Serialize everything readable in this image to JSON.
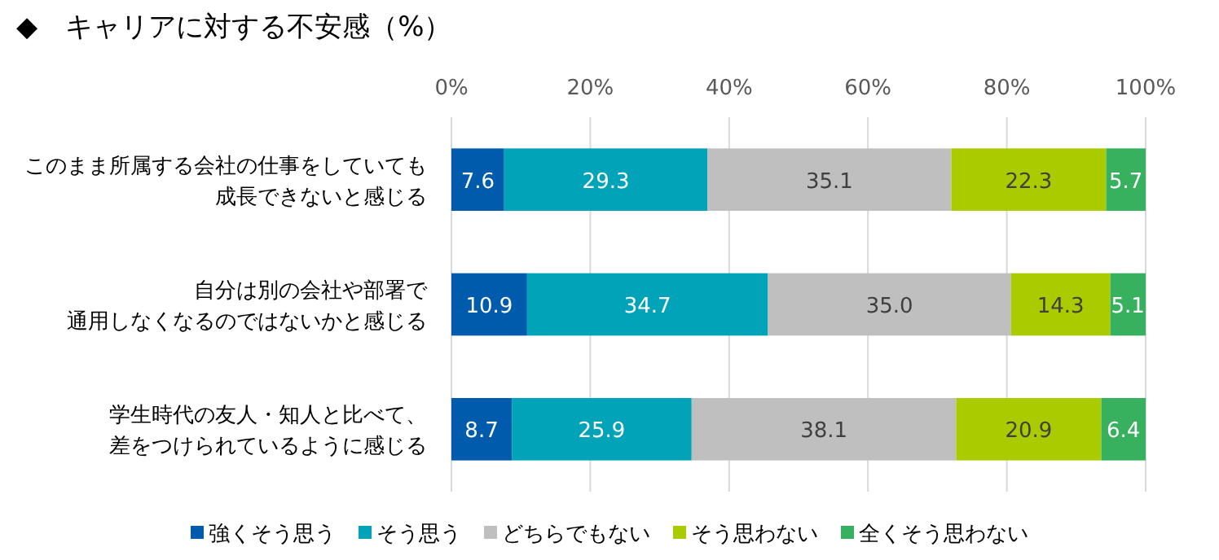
{
  "chart_data": {
    "type": "bar",
    "orientation": "horizontal",
    "stacked": true,
    "title": "◆　キャリアに対する不安感（%）",
    "categories": [
      "このまま所属する会社の仕事をしていても成長できないと感じる",
      "自分は別の会社や部署で通用しなくなるのではないかと感じる",
      "学生時代の友人・知人と比べて、差をつけられているように感じる"
    ],
    "series": [
      {
        "name": "強くそう思う",
        "color": "#005bac",
        "values": [
          7.6,
          10.9,
          8.7
        ],
        "value_labels": [
          "7.6",
          "10.9",
          "8.7"
        ]
      },
      {
        "name": "そう思う",
        "color": "#00a3b7",
        "values": [
          29.3,
          34.7,
          25.9
        ],
        "value_labels": [
          "29.3",
          "34.7",
          "25.9"
        ]
      },
      {
        "name": "どちらでもない",
        "color": "#bfbfbf",
        "values": [
          35.1,
          35.0,
          38.1
        ],
        "value_labels": [
          "35.1",
          "35.0",
          "38.1"
        ]
      },
      {
        "name": "そう思わない",
        "color": "#a9cb00",
        "values": [
          22.3,
          14.3,
          20.9
        ],
        "value_labels": [
          "22.3",
          "14.3",
          "20.9"
        ]
      },
      {
        "name": "全くそう思わない",
        "color": "#38b15e",
        "values": [
          5.7,
          5.1,
          6.4
        ],
        "value_labels": [
          "5.7",
          "5.1",
          "6.4"
        ]
      }
    ],
    "xlim": [
      0,
      100
    ],
    "xticks": [
      {
        "value": 0,
        "label": "0%"
      },
      {
        "value": 20,
        "label": "20%"
      },
      {
        "value": 40,
        "label": "40%"
      },
      {
        "value": 60,
        "label": "60%"
      },
      {
        "value": 80,
        "label": "80%"
      },
      {
        "value": 100,
        "label": "100%"
      }
    ],
    "grid": "x",
    "legend": "bottom"
  }
}
